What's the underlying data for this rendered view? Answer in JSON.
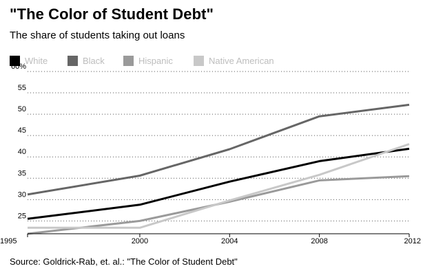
{
  "header": {
    "title": "\"The Color of Student Debt\"",
    "subtitle": "The share of students taking out loans"
  },
  "footer": {
    "source": "Source: Goldrick-Rab, et. al.: \"The Color of Student Debt\""
  },
  "chart_data": {
    "type": "line",
    "title": "\"The Color of Student Debt\"",
    "subtitle": "The share of students taking out loans",
    "x": [
      1995,
      2000,
      2004,
      2008,
      2012
    ],
    "x_tick_labels": [
      "1995",
      "2000",
      "2004",
      "2008",
      "2012"
    ],
    "y_ticks": [
      25,
      30,
      35,
      40,
      45,
      50,
      55,
      60
    ],
    "y_tick_labels": [
      "25",
      "30",
      "35",
      "40",
      "45",
      "50",
      "55",
      "60%"
    ],
    "xlim": [
      1995,
      2012
    ],
    "ylim": [
      22,
      60
    ],
    "grid": true,
    "legend_position": "top-left",
    "series": [
      {
        "name": "White",
        "color": "#000000",
        "values": [
          25.5,
          28.8,
          34.2,
          39.0,
          41.9
        ]
      },
      {
        "name": "Black",
        "color": "#666666",
        "values": [
          31.2,
          35.6,
          41.8,
          49.5,
          52.2
        ]
      },
      {
        "name": "Hispanic",
        "color": "#9a9a9a",
        "values": [
          22.0,
          25.0,
          29.5,
          34.5,
          35.5
        ]
      },
      {
        "name": "Native American",
        "color": "#c8c8c8",
        "values": [
          23.4,
          23.4,
          29.8,
          35.8,
          43.0
        ]
      }
    ]
  }
}
